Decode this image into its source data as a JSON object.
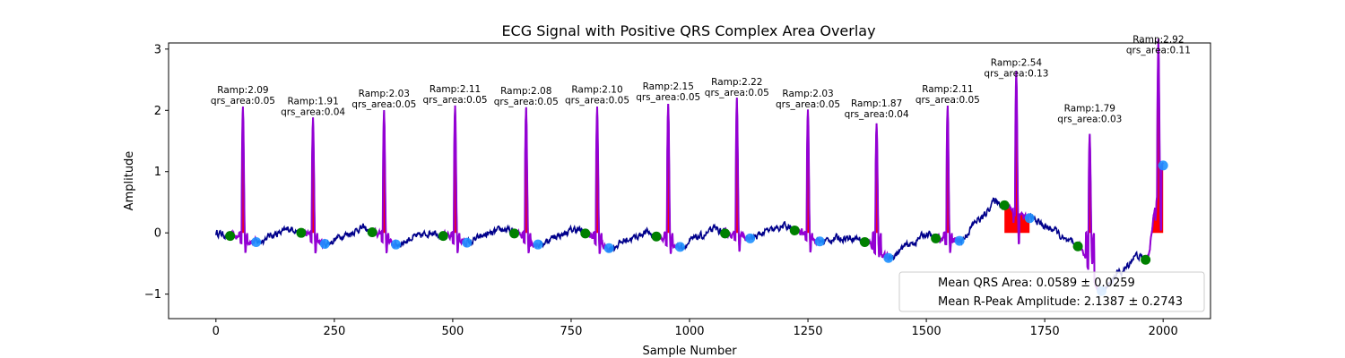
{
  "chart_data": {
    "type": "line",
    "title": "ECG Signal with Positive QRS Complex Area Overlay",
    "xlabel": "Sample Number",
    "ylabel": "Amplitude",
    "xlim": [
      -100,
      2100
    ],
    "ylim": [
      -1.4,
      3.1
    ],
    "xticks": [
      0,
      250,
      500,
      750,
      1000,
      1250,
      1500,
      1750,
      2000
    ],
    "yticks": [
      -1,
      0,
      1,
      2,
      3
    ],
    "grid": false,
    "colors": {
      "signal": "#00008b",
      "qrs_segment": "#9400d3",
      "qrs_area_fill": "#ff0000",
      "qrs_onset_marker": "#008000",
      "qrs_offset_marker": "#1e90ff"
    },
    "beats": [
      {
        "r_x": 57,
        "ramp": 2.09,
        "qrs_area": 0.05,
        "onset": [
          30,
          -0.05
        ],
        "offset": [
          85,
          -0.15
        ],
        "ramp_label": "Ramp:2.09",
        "area_label": "qrs_area:0.05"
      },
      {
        "r_x": 205,
        "ramp": 1.91,
        "qrs_area": 0.04,
        "onset": [
          180,
          0.0
        ],
        "offset": [
          230,
          -0.18
        ],
        "ramp_label": "Ramp:1.91",
        "area_label": "qrs_area:0.04"
      },
      {
        "r_x": 355,
        "ramp": 2.03,
        "qrs_area": 0.05,
        "onset": [
          330,
          0.01
        ],
        "offset": [
          380,
          -0.19
        ],
        "ramp_label": "Ramp:2.03",
        "area_label": "qrs_area:0.05"
      },
      {
        "r_x": 505,
        "ramp": 2.11,
        "qrs_area": 0.05,
        "onset": [
          480,
          -0.05
        ],
        "offset": [
          530,
          -0.16
        ],
        "ramp_label": "Ramp:2.11",
        "area_label": "qrs_area:0.05"
      },
      {
        "r_x": 655,
        "ramp": 2.08,
        "qrs_area": 0.05,
        "onset": [
          630,
          -0.01
        ],
        "offset": [
          680,
          -0.19
        ],
        "ramp_label": "Ramp:2.08",
        "area_label": "qrs_area:0.05"
      },
      {
        "r_x": 805,
        "ramp": 2.1,
        "qrs_area": 0.05,
        "onset": [
          780,
          -0.01
        ],
        "offset": [
          830,
          -0.25
        ],
        "ramp_label": "Ramp:2.10",
        "area_label": "qrs_area:0.05"
      },
      {
        "r_x": 955,
        "ramp": 2.15,
        "qrs_area": 0.05,
        "onset": [
          930,
          -0.06
        ],
        "offset": [
          980,
          -0.23
        ],
        "ramp_label": "Ramp:2.15",
        "area_label": "qrs_area:0.05"
      },
      {
        "r_x": 1100,
        "ramp": 2.22,
        "qrs_area": 0.05,
        "onset": [
          1075,
          -0.01
        ],
        "offset": [
          1128,
          -0.09
        ],
        "ramp_label": "Ramp:2.22",
        "area_label": "qrs_area:0.05"
      },
      {
        "r_x": 1250,
        "ramp": 2.03,
        "qrs_area": 0.05,
        "onset": [
          1222,
          0.04
        ],
        "offset": [
          1275,
          -0.14
        ],
        "ramp_label": "Ramp:2.03",
        "area_label": "qrs_area:0.05"
      },
      {
        "r_x": 1395,
        "ramp": 1.87,
        "qrs_area": 0.04,
        "onset": [
          1370,
          -0.15
        ],
        "offset": [
          1420,
          -0.41
        ],
        "ramp_label": "Ramp:1.87",
        "area_label": "qrs_area:0.04"
      },
      {
        "r_x": 1545,
        "ramp": 2.11,
        "qrs_area": 0.05,
        "onset": [
          1520,
          -0.09
        ],
        "offset": [
          1570,
          -0.13
        ],
        "ramp_label": "Ramp:2.11",
        "area_label": "qrs_area:0.05"
      },
      {
        "r_x": 1690,
        "ramp": 2.54,
        "qrs_area": 0.13,
        "onset": [
          1665,
          0.45
        ],
        "offset": [
          1718,
          0.24
        ],
        "ramp_label": "Ramp:2.54",
        "area_label": "qrs_area:0.13"
      },
      {
        "r_x": 1845,
        "ramp": 1.79,
        "qrs_area": 0.03,
        "onset": [
          1820,
          -0.22
        ],
        "offset": [
          1870,
          -0.95
        ],
        "ramp_label": "Ramp:1.79",
        "area_label": "qrs_area:0.03"
      },
      {
        "r_x": 1990,
        "ramp": 2.92,
        "qrs_area": 0.11,
        "onset": [
          1963,
          -0.44
        ],
        "offset": [
          2000,
          1.1
        ],
        "ramp_label": "Ramp:2.92",
        "area_label": "qrs_area:0.11"
      }
    ],
    "legend": {
      "placement": "lower right",
      "entries": [
        "Mean QRS Area: 0.0589 ± 0.0259",
        "Mean R-Peak Amplitude: 2.1387 ± 0.2743"
      ]
    }
  }
}
